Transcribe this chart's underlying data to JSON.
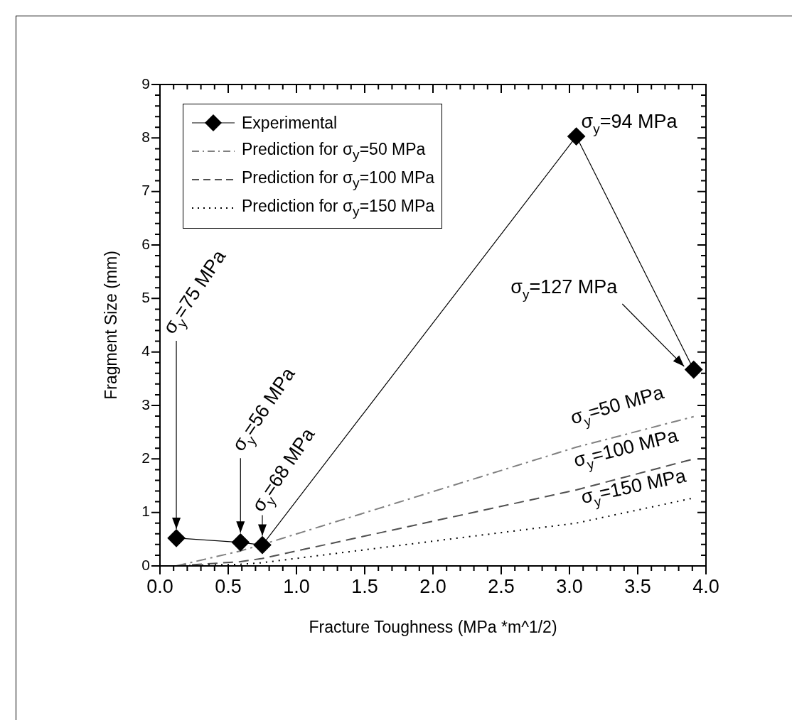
{
  "chart_data": {
    "type": "line",
    "xlabel": "Fracture Toughness (MPa *m^1/2)",
    "ylabel": "Fragment Size (mm)",
    "xlim": [
      0,
      4
    ],
    "ylim": [
      0,
      9
    ],
    "xticks": [
      {
        "value": 0,
        "label": "0.0"
      },
      {
        "value": 0.1,
        "label": null
      },
      {
        "value": 0.2,
        "label": null
      },
      {
        "value": 0.3,
        "label": null
      },
      {
        "value": 0.4,
        "label": null
      },
      {
        "value": 0.5,
        "label": "0.5"
      },
      {
        "value": 0.6,
        "label": null
      },
      {
        "value": 0.7,
        "label": null
      },
      {
        "value": 0.8,
        "label": null
      },
      {
        "value": 0.9,
        "label": null
      },
      {
        "value": 1,
        "label": "1.0"
      },
      {
        "value": 1.1,
        "label": null
      },
      {
        "value": 1.2,
        "label": null
      },
      {
        "value": 1.3,
        "label": null
      },
      {
        "value": 1.4,
        "label": null
      },
      {
        "value": 1.5,
        "label": "1.5"
      },
      {
        "value": 1.6,
        "label": null
      },
      {
        "value": 1.7,
        "label": null
      },
      {
        "value": 1.8,
        "label": null
      },
      {
        "value": 1.9,
        "label": null
      },
      {
        "value": 2,
        "label": "2.0"
      },
      {
        "value": 2.1,
        "label": null
      },
      {
        "value": 2.2,
        "label": null
      },
      {
        "value": 2.3,
        "label": null
      },
      {
        "value": 2.4,
        "label": null
      },
      {
        "value": 2.5,
        "label": "2.5"
      },
      {
        "value": 2.6,
        "label": null
      },
      {
        "value": 2.7,
        "label": null
      },
      {
        "value": 2.8,
        "label": null
      },
      {
        "value": 2.9,
        "label": null
      },
      {
        "value": 3,
        "label": "3.0"
      },
      {
        "value": 3.1,
        "label": null
      },
      {
        "value": 3.2,
        "label": null
      },
      {
        "value": 3.3,
        "label": null
      },
      {
        "value": 3.4,
        "label": null
      },
      {
        "value": 3.5,
        "label": "3.5"
      },
      {
        "value": 3.6,
        "label": null
      },
      {
        "value": 3.7,
        "label": null
      },
      {
        "value": 3.8,
        "label": null
      },
      {
        "value": 3.9,
        "label": null
      },
      {
        "value": 4,
        "label": "4.0"
      }
    ],
    "yticks": [
      0,
      {
        "value": 0.2,
        "label": null
      },
      {
        "value": 0.4,
        "label": null
      },
      {
        "value": 0.6,
        "label": null
      },
      {
        "value": 0.8,
        "label": null
      },
      1,
      {
        "value": 1.2,
        "label": null
      },
      {
        "value": 1.4,
        "label": null
      },
      {
        "value": 1.6,
        "label": null
      },
      {
        "value": 1.8,
        "label": null
      },
      2,
      {
        "value": 2.2,
        "label": null
      },
      {
        "value": 2.4,
        "label": null
      },
      {
        "value": 2.6,
        "label": null
      },
      {
        "value": 2.8,
        "label": null
      },
      3,
      {
        "value": 3.2,
        "label": null
      },
      {
        "value": 3.4,
        "label": null
      },
      {
        "value": 3.6,
        "label": null
      },
      {
        "value": 3.8,
        "label": null
      },
      4,
      {
        "value": 4.2,
        "label": null
      },
      {
        "value": 4.4,
        "label": null
      },
      {
        "value": 4.6,
        "label": null
      },
      {
        "value": 4.8,
        "label": null
      },
      5,
      {
        "value": 5.2,
        "label": null
      },
      {
        "value": 5.4,
        "label": null
      },
      {
        "value": 5.6,
        "label": null
      },
      {
        "value": 5.8,
        "label": null
      },
      6,
      {
        "value": 6.2,
        "label": null
      },
      {
        "value": 6.4,
        "label": null
      },
      {
        "value": 6.6,
        "label": null
      },
      {
        "value": 6.8,
        "label": null
      },
      7,
      {
        "value": 7.2,
        "label": null
      },
      {
        "value": 7.4,
        "label": null
      },
      {
        "value": 7.6,
        "label": null
      },
      {
        "value": 7.8,
        "label": null
      },
      8,
      {
        "value": 8.2,
        "label": null
      },
      {
        "value": 8.4,
        "label": null
      },
      {
        "value": 8.6,
        "label": null
      },
      {
        "value": 8.8,
        "label": null
      },
      9
    ],
    "grid": false,
    "legend": "top left",
    "series": [
      {
        "name": "Experimental",
        "color": "#000000",
        "marker": "diamond",
        "line_style": "solid",
        "x": [
          0.12,
          0.59,
          0.75,
          3.05,
          3.91
        ],
        "values": [
          0.52,
          0.44,
          0.39,
          8.03,
          3.67
        ]
      },
      {
        "name": "Prediction for σ$_{y}$=50 MPa",
        "color": "#808080",
        "marker": "none",
        "line_style": "dashdot",
        "x": [
          0.12,
          0.59,
          0.75,
          3.05,
          3.91
        ],
        "values": [
          0,
          0.28,
          0.4,
          2.22,
          2.79
        ]
      },
      {
        "name": "Prediction for σ$_{y}$=100 MPa",
        "color": "#505050",
        "marker": "none",
        "line_style": "dashed",
        "x": [
          0.12,
          0.59,
          0.75,
          3.05,
          3.91
        ],
        "values": [
          0,
          0.08,
          0.14,
          1.42,
          2.0
        ]
      },
      {
        "name": "Prediction for σ$_{y}$=150 MPa",
        "color": "#000000",
        "marker": "none",
        "line_style": "dotted",
        "x": [
          0.12,
          0.59,
          0.75,
          3.05,
          3.91
        ],
        "values": [
          0,
          0.03,
          0.06,
          0.8,
          1.27
        ]
      }
    ],
    "annotations": [
      {
        "text": "σ$_{y}$=75 MPa",
        "x": 0.12,
        "y": 0.69
      },
      {
        "text": "σ$_{y}$=56 MPa",
        "x": 0.59,
        "y": 0.62
      },
      {
        "text": "σ$_{y}$=68 MPa",
        "x": 0.75,
        "y": 0.39
      },
      {
        "text": "σ$_{y}$=94 MPa",
        "x": 3.05,
        "y": 8.03
      },
      {
        "text": "σ$_{y}$=127 MPa",
        "x": 3.84,
        "y": 3.73
      },
      {
        "text": "σ$_{y}$=50 MPa",
        "x": 3.3,
        "y": 2.45
      },
      {
        "text": "σ$_{y}$=100 MPa",
        "x": 3.3,
        "y": 1.6
      },
      {
        "text": "σ$_{y}$=150 MPa",
        "x": 3.3,
        "y": 0.94
      }
    ]
  }
}
